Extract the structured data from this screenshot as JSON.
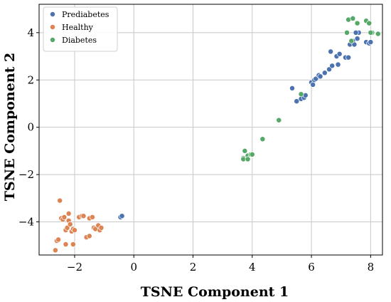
{
  "chart_data": {
    "type": "scatter",
    "xlabel": "TSNE Component 1",
    "ylabel": "TSNE Component 2",
    "xlim": [
      -3.2,
      8.4
    ],
    "ylim": [
      -5.4,
      5.2
    ],
    "xticks": [
      -2,
      0,
      2,
      4,
      6,
      8
    ],
    "yticks": [
      -4,
      -2,
      0,
      2,
      4
    ],
    "xtick_labels": [
      "−2",
      "0",
      "2",
      "4",
      "6",
      "8"
    ],
    "ytick_labels": [
      "−4",
      "−2",
      "0",
      "2",
      "4"
    ],
    "grid": true,
    "legend_position": "top-left",
    "series": [
      {
        "name": "Prediabetes",
        "color": "#4c72b0",
        "points": [
          [
            -0.45,
            -3.8
          ],
          [
            -0.4,
            -3.75
          ],
          [
            5.35,
            1.65
          ],
          [
            5.5,
            1.1
          ],
          [
            5.65,
            1.2
          ],
          [
            5.75,
            1.25
          ],
          [
            5.8,
            1.35
          ],
          [
            6.0,
            1.9
          ],
          [
            6.05,
            1.8
          ],
          [
            6.1,
            2.0
          ],
          [
            6.15,
            2.05
          ],
          [
            6.25,
            2.2
          ],
          [
            6.3,
            2.15
          ],
          [
            6.45,
            2.3
          ],
          [
            6.6,
            2.45
          ],
          [
            6.65,
            3.2
          ],
          [
            6.7,
            2.6
          ],
          [
            6.85,
            3.0
          ],
          [
            6.9,
            2.65
          ],
          [
            6.95,
            3.1
          ],
          [
            7.15,
            2.95
          ],
          [
            7.25,
            2.95
          ],
          [
            7.3,
            3.5
          ],
          [
            7.4,
            3.65
          ],
          [
            7.45,
            3.5
          ],
          [
            7.55,
            3.75
          ],
          [
            7.6,
            4.0
          ],
          [
            7.85,
            3.6
          ],
          [
            7.95,
            3.55
          ],
          [
            8.0,
            3.6
          ],
          [
            7.5,
            4.0
          ]
        ]
      },
      {
        "name": "Healthy",
        "color": "#dd8452",
        "points": [
          [
            -2.6,
            -4.8
          ],
          [
            -2.65,
            -5.2
          ],
          [
            -2.55,
            -4.75
          ],
          [
            -2.5,
            -3.1
          ],
          [
            -2.45,
            -3.85
          ],
          [
            -2.4,
            -3.9
          ],
          [
            -2.35,
            -3.8
          ],
          [
            -2.3,
            -4.35
          ],
          [
            -2.3,
            -4.95
          ],
          [
            -2.25,
            -4.25
          ],
          [
            -2.2,
            -3.95
          ],
          [
            -2.2,
            -3.65
          ],
          [
            -2.15,
            -4.1
          ],
          [
            -2.1,
            -4.4
          ],
          [
            -2.05,
            -4.3
          ],
          [
            -2.05,
            -4.95
          ],
          [
            -2.0,
            -4.35
          ],
          [
            -1.85,
            -3.8
          ],
          [
            -1.75,
            -3.75
          ],
          [
            -1.7,
            -3.75
          ],
          [
            -1.6,
            -4.65
          ],
          [
            -1.5,
            -3.85
          ],
          [
            -1.5,
            -4.6
          ],
          [
            -1.4,
            -3.8
          ],
          [
            -1.35,
            -4.25
          ],
          [
            -1.3,
            -4.3
          ],
          [
            -1.2,
            -4.15
          ],
          [
            -1.15,
            -4.35
          ],
          [
            -1.1,
            -4.25
          ]
        ]
      },
      {
        "name": "Diabetes",
        "color": "#55a868",
        "points": [
          [
            3.7,
            -1.3
          ],
          [
            3.7,
            -1.35
          ],
          [
            3.75,
            -1.0
          ],
          [
            3.85,
            -1.2
          ],
          [
            3.85,
            -1.35
          ],
          [
            3.95,
            -1.15
          ],
          [
            4.0,
            -1.15
          ],
          [
            4.35,
            -0.5
          ],
          [
            4.9,
            0.3
          ],
          [
            5.65,
            1.4
          ],
          [
            7.2,
            4.0
          ],
          [
            7.25,
            4.55
          ],
          [
            7.35,
            3.65
          ],
          [
            7.4,
            4.6
          ],
          [
            7.55,
            4.4
          ],
          [
            7.85,
            4.5
          ],
          [
            7.95,
            4.4
          ],
          [
            8.05,
            4.0
          ],
          [
            8.25,
            3.95
          ],
          [
            8.0,
            4.0
          ]
        ]
      }
    ]
  }
}
